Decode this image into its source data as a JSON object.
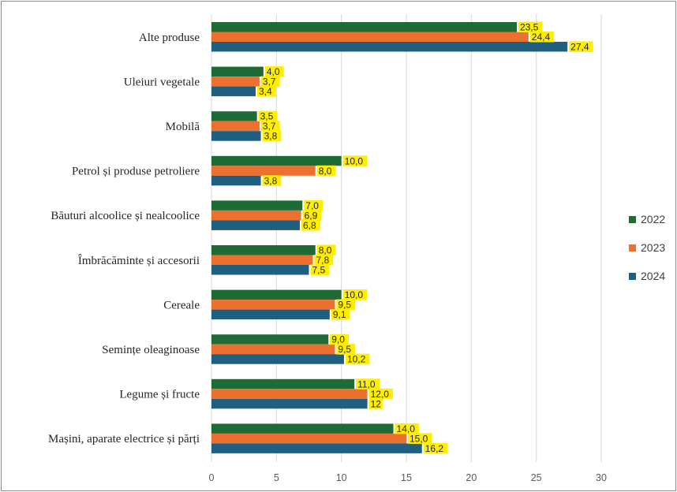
{
  "chart_data": {
    "type": "bar",
    "orientation": "horizontal",
    "categories": [
      "Alte produse",
      "Uleiuri vegetale",
      "Mobilă",
      "Petrol și produse petroliere",
      "Băuturi alcoolice și nealcoolice",
      "Îmbrăcăminte și accesorii",
      "Cereale",
      "Semințe oleaginoase",
      "Legume și fructe",
      "Mașini, aparate electrice și părți"
    ],
    "series": [
      {
        "name": "2022",
        "color": "#1e6b35",
        "values": [
          23.5,
          4.0,
          3.5,
          10.0,
          7.0,
          8.0,
          10.0,
          9.0,
          11.0,
          14.0
        ],
        "labels": [
          "23,5",
          "4,0",
          "3,5",
          "10,0",
          "7,0",
          "8,0",
          "10,0",
          "9,0",
          "11,0",
          "14,0"
        ]
      },
      {
        "name": "2023",
        "color": "#ec7130",
        "values": [
          24.4,
          3.7,
          3.7,
          8.0,
          6.9,
          7.8,
          9.5,
          9.5,
          12.0,
          15.0
        ],
        "labels": [
          "24,4",
          "3,7",
          "3,7",
          "8,0",
          "6,9",
          "7,8",
          "9,5",
          "9,5",
          "12,0",
          "15,0"
        ]
      },
      {
        "name": "2024",
        "color": "#1f5f80",
        "values": [
          27.4,
          3.4,
          3.8,
          3.8,
          6.8,
          7.5,
          9.1,
          10.2,
          12,
          16.2
        ],
        "labels": [
          "27,4",
          "3,4",
          "3,8",
          "3,8",
          "6,8",
          "7,5",
          "9,1",
          "10,2",
          "12",
          "16,2"
        ]
      }
    ],
    "xlim": [
      0,
      30
    ],
    "xticks": [
      0,
      5,
      10,
      15,
      20,
      25,
      30
    ],
    "xtick_labels": [
      "0",
      "5",
      "10",
      "15",
      "20",
      "25",
      "30"
    ],
    "grid": true,
    "legend_position": "right",
    "data_label_highlight": "#ffee00",
    "title": "",
    "xlabel": "",
    "ylabel": ""
  }
}
